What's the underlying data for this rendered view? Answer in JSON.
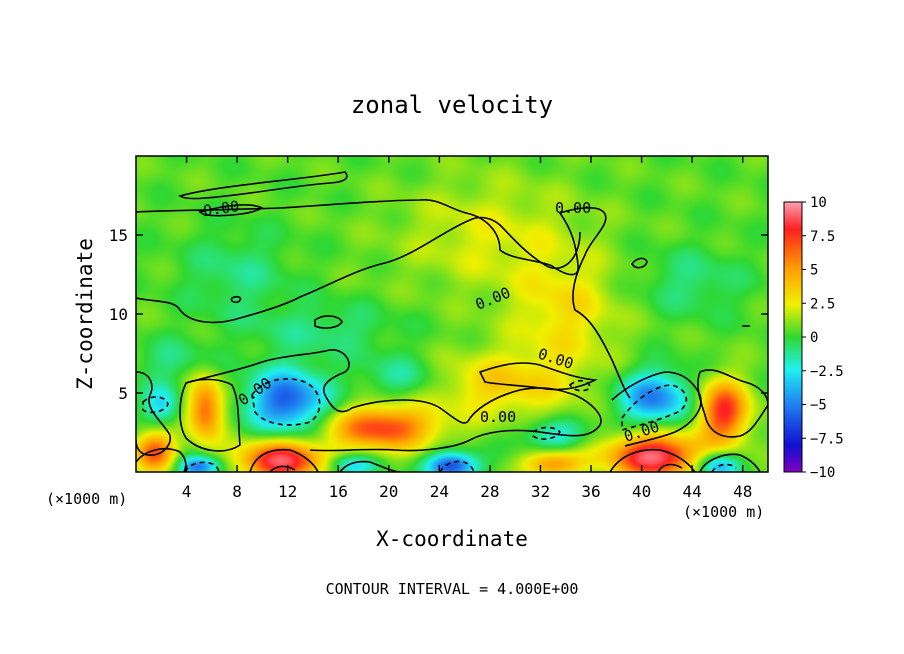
{
  "chart_data": {
    "type": "heatmap",
    "title": "zonal velocity",
    "xlabel": "X-coordinate",
    "ylabel": "Z-coordinate",
    "x_unit_left": "(×1000 m)",
    "x_unit_right": "(×1000 m)",
    "footer": "CONTOUR INTERVAL = 4.000E+00",
    "xlim": [
      0,
      50
    ],
    "ylim": [
      0,
      20
    ],
    "x_ticks": [
      4,
      8,
      12,
      16,
      20,
      24,
      28,
      32,
      36,
      40,
      44,
      48
    ],
    "y_ticks": [
      5,
      10,
      15
    ],
    "colorbar": {
      "range": [
        -10,
        10
      ],
      "tick_values": [
        10,
        7.5,
        5,
        2.5,
        0,
        -2.5,
        -5,
        -7.5,
        -10
      ],
      "tick_labels": [
        "10",
        "7.5",
        "5",
        "2.5",
        "0",
        "−2.5",
        "−5",
        "−7.5",
        "−10"
      ]
    },
    "contour_labels": [
      "0.00",
      "0.00",
      "0.00",
      "0.00",
      "0.00",
      "0.00",
      "0.00",
      "0.00"
    ],
    "background_value": 0.5,
    "features": [
      {
        "x": 12,
        "z": 4.5,
        "value": -6.5,
        "sx": 2.2,
        "sz": 1.4
      },
      {
        "x": 41,
        "z": 4.7,
        "value": -5.5,
        "sx": 2.0,
        "sz": 1.2
      },
      {
        "x": 2,
        "z": 4.2,
        "value": -3.5,
        "sx": 1.0,
        "sz": 0.9
      },
      {
        "x": 21,
        "z": 6.0,
        "value": -2.0,
        "sx": 2.2,
        "sz": 1.0
      },
      {
        "x": 33,
        "z": 2.3,
        "value": -3.0,
        "sx": 1.8,
        "sz": 0.7
      },
      {
        "x": 25,
        "z": 0.4,
        "value": -7.0,
        "sx": 1.4,
        "sz": 0.6
      },
      {
        "x": 5,
        "z": 0.3,
        "value": -6.0,
        "sx": 1.2,
        "sz": 0.5
      },
      {
        "x": 46,
        "z": 0.4,
        "value": -5.0,
        "sx": 1.2,
        "sz": 0.6
      },
      {
        "x": 17,
        "z": 0.4,
        "value": -4.0,
        "sx": 1.4,
        "sz": 0.5
      },
      {
        "x": 5.5,
        "z": 4.0,
        "value": 6.0,
        "sx": 1.0,
        "sz": 1.4
      },
      {
        "x": 19.5,
        "z": 2.8,
        "value": 6.5,
        "sx": 3.0,
        "sz": 1.0
      },
      {
        "x": 46.5,
        "z": 3.8,
        "value": 7.0,
        "sx": 1.4,
        "sz": 1.4
      },
      {
        "x": 1.5,
        "z": 1.3,
        "value": 6.0,
        "sx": 1.2,
        "sz": 0.9
      },
      {
        "x": 11.5,
        "z": 0.7,
        "value": 8.0,
        "sx": 2.4,
        "sz": 0.9
      },
      {
        "x": 41,
        "z": 1.0,
        "value": 8.5,
        "sx": 2.6,
        "sz": 1.0
      },
      {
        "x": 33,
        "z": 0.5,
        "value": 5.0,
        "sx": 1.6,
        "sz": 0.6
      },
      {
        "x": 29,
        "z": 5.5,
        "value": 3.0,
        "sx": 4.0,
        "sz": 1.5
      },
      {
        "x": 34,
        "z": 10,
        "value": 2.5,
        "sx": 3.0,
        "sz": 2.5
      },
      {
        "x": 28,
        "z": 15,
        "value": 1.8,
        "sx": 5.0,
        "sz": 2.5
      },
      {
        "x": 8,
        "z": 12.5,
        "value": -1.5,
        "sx": 3.0,
        "sz": 2.0
      },
      {
        "x": 44,
        "z": 12,
        "value": -1.5,
        "sx": 3.0,
        "sz": 1.5
      },
      {
        "x": 15,
        "z": 9,
        "value": -1.5,
        "sx": 4.0,
        "sz": 1.2
      },
      {
        "x": 3,
        "z": 7,
        "value": -1.5,
        "sx": 2.0,
        "sz": 1.0
      }
    ]
  }
}
